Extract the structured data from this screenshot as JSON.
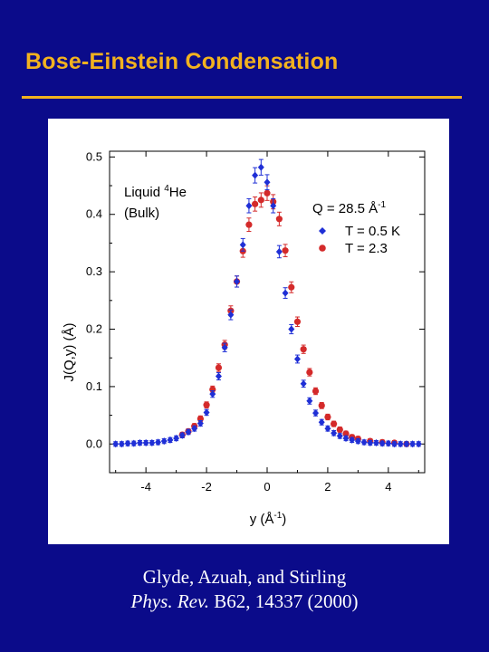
{
  "slide": {
    "title": "Bose-Einstein Condensation",
    "citation_line1": "Glyde, Azuah, and Stirling",
    "citation_journal": "Phys. Rev.",
    "citation_ref": "B62, 14337 (2000)"
  },
  "colors": {
    "background": "#0b0b8a",
    "title": "#f2b21f",
    "series_0_5K": "#1f2fd6",
    "series_2_3K": "#d42a2a"
  },
  "chart_data": {
    "type": "scatter",
    "xlabel": "y (Å",
    "xlabel_sup": "-1",
    "xlabel_close": ")",
    "ylabel": "J(Q,y) (Å)",
    "xlim": [
      -5.2,
      5.2
    ],
    "ylim": [
      -0.05,
      0.51
    ],
    "xticks": [
      -4,
      -2,
      0,
      2,
      4
    ],
    "yticks": [
      0.0,
      0.1,
      0.2,
      0.3,
      0.4,
      0.5
    ],
    "xtick_labels": [
      "-4",
      "-2",
      "0",
      "2",
      "4"
    ],
    "ytick_labels": [
      "0.0",
      "0.1",
      "0.2",
      "0.3",
      "0.4",
      "0.5"
    ],
    "annotation": {
      "sample_line1": "Liquid ",
      "sample_sup": "4",
      "sample_line1_end": "He",
      "sample_line2": "(Bulk)",
      "q_label": "Q = 28.5 Å",
      "q_sup": "-1"
    },
    "legend_position": "top-right",
    "series": [
      {
        "name": "T = 0.5 K",
        "color": "#1f2fd6",
        "marker": "diamond",
        "x": [
          -5.0,
          -4.8,
          -4.6,
          -4.4,
          -4.2,
          -4.0,
          -3.8,
          -3.6,
          -3.4,
          -3.2,
          -3.0,
          -2.8,
          -2.6,
          -2.4,
          -2.2,
          -2.0,
          -1.8,
          -1.6,
          -1.4,
          -1.2,
          -1.0,
          -0.8,
          -0.6,
          -0.4,
          -0.2,
          0.0,
          0.2,
          0.4,
          0.6,
          0.8,
          1.0,
          1.2,
          1.4,
          1.6,
          1.8,
          2.0,
          2.2,
          2.4,
          2.6,
          2.8,
          3.0,
          3.2,
          3.4,
          3.6,
          3.8,
          4.0,
          4.2,
          4.4,
          4.6,
          4.8,
          5.0
        ],
        "y": [
          0.0,
          0.0,
          0.001,
          0.001,
          0.002,
          0.002,
          0.002,
          0.003,
          0.005,
          0.007,
          0.01,
          0.015,
          0.021,
          0.027,
          0.036,
          0.055,
          0.087,
          0.118,
          0.168,
          0.225,
          0.283,
          0.347,
          0.415,
          0.468,
          0.482,
          0.456,
          0.415,
          0.335,
          0.263,
          0.2,
          0.148,
          0.105,
          0.075,
          0.054,
          0.038,
          0.027,
          0.019,
          0.014,
          0.01,
          0.007,
          0.005,
          0.003,
          0.002,
          0.002,
          0.001,
          0.001,
          0.0,
          0.0,
          0.0,
          0.0,
          0.0
        ]
      },
      {
        "name": "T = 2.3",
        "color": "#d42a2a",
        "marker": "circle",
        "x": [
          -2.8,
          -2.6,
          -2.4,
          -2.2,
          -2.0,
          -1.8,
          -1.6,
          -1.4,
          -1.2,
          -1.0,
          -0.8,
          -0.6,
          -0.4,
          -0.2,
          0.0,
          0.2,
          0.4,
          0.6,
          0.8,
          1.0,
          1.2,
          1.4,
          1.6,
          1.8,
          2.0,
          2.2,
          2.4,
          2.6,
          2.8,
          3.0,
          3.4,
          3.8,
          4.2,
          4.6
        ],
        "y": [
          0.016,
          0.022,
          0.031,
          0.044,
          0.068,
          0.095,
          0.133,
          0.173,
          0.232,
          0.283,
          0.336,
          0.382,
          0.418,
          0.425,
          0.437,
          0.422,
          0.392,
          0.337,
          0.273,
          0.213,
          0.165,
          0.125,
          0.092,
          0.067,
          0.047,
          0.035,
          0.025,
          0.018,
          0.012,
          0.009,
          0.005,
          0.003,
          0.002,
          0.0
        ]
      }
    ]
  }
}
